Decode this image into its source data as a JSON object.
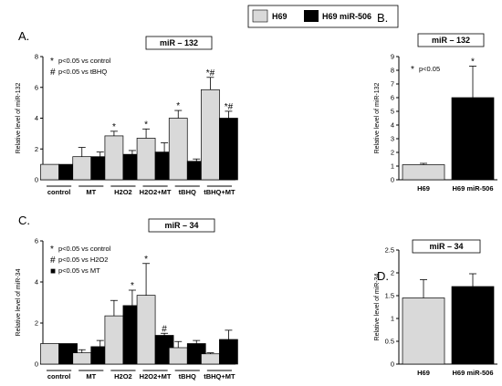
{
  "legend": {
    "items": [
      {
        "label": "H69",
        "color": "#d9d9d9"
      },
      {
        "label": "H69 miR-506",
        "color": "#000000"
      }
    ]
  },
  "chart_data": [
    {
      "panel": "A.",
      "type": "bar",
      "title": "miR – 132",
      "ylabel": "Relative level of miR-132",
      "ylim": [
        0,
        8
      ],
      "yticks": [
        "0",
        "2",
        "4",
        "6",
        "8"
      ],
      "categories": [
        "control",
        "MT",
        "H2O2",
        "H2O2+MT",
        "tBHQ",
        "tBHQ+MT"
      ],
      "series": [
        {
          "name": "H69",
          "values": [
            1.0,
            1.5,
            2.85,
            2.7,
            4.0,
            5.85
          ],
          "errors": [
            0,
            0.6,
            0.3,
            0.6,
            0.5,
            0.8
          ]
        },
        {
          "name": "H69 miR-506",
          "values": [
            1.0,
            1.5,
            1.65,
            1.8,
            1.2,
            4.0
          ],
          "errors": [
            0,
            0.3,
            0.25,
            0.6,
            0.15,
            0.45
          ]
        }
      ],
      "annotations": [
        {
          "text": "*",
          "category": 2,
          "series": 0
        },
        {
          "text": "*",
          "category": 3,
          "series": 0
        },
        {
          "text": "*",
          "category": 4,
          "series": 0
        },
        {
          "text": "*#",
          "category": 5,
          "series": 0
        },
        {
          "text": "*#",
          "category": 5,
          "series": 1
        }
      ],
      "notes": [
        {
          "mark": "*",
          "text": "p<0.05 vs control"
        },
        {
          "mark": "#",
          "text": "p<0.05 vs tBHQ"
        }
      ]
    },
    {
      "panel": "B.",
      "type": "bar",
      "title": "miR – 132",
      "ylabel": "Relative level of miR-132",
      "ylim": [
        0,
        9
      ],
      "yticks": [
        "0",
        "1",
        "2",
        "3",
        "4",
        "5",
        "6",
        "7",
        "8",
        "9"
      ],
      "categories": [
        "H69",
        "H69 miR-506"
      ],
      "series": [
        {
          "name": "H69",
          "values": [
            1.1,
            null
          ],
          "errors": [
            0.1,
            null
          ]
        },
        {
          "name": "H69 miR-506",
          "values": [
            null,
            6.0
          ],
          "errors": [
            null,
            2.3
          ]
        }
      ],
      "annotations": [
        {
          "text": "*",
          "category": 1,
          "series": 1
        }
      ],
      "notes": [
        {
          "mark": "*",
          "text": "p<0.05"
        }
      ]
    },
    {
      "panel": "C.",
      "type": "bar",
      "title": "miR – 34",
      "ylabel": "Relative level of miR-34",
      "ylim": [
        0,
        6
      ],
      "yticks": [
        "0",
        "2",
        "4",
        "6"
      ],
      "categories": [
        "control",
        "MT",
        "H2O2",
        "H2O2+MT",
        "tBHQ",
        "tBHQ+MT"
      ],
      "series": [
        {
          "name": "H69",
          "values": [
            1.0,
            0.55,
            2.35,
            3.35,
            0.8,
            0.5
          ],
          "errors": [
            0,
            0.15,
            0.75,
            1.55,
            0.3,
            0.05
          ]
        },
        {
          "name": "H69 miR-506",
          "values": [
            1.0,
            0.85,
            2.85,
            1.4,
            1.0,
            1.2
          ],
          "errors": [
            0,
            0.3,
            0.75,
            0.1,
            0.15,
            0.45
          ]
        }
      ],
      "annotations": [
        {
          "text": "*",
          "category": 2,
          "series": 1
        },
        {
          "text": "*",
          "category": 3,
          "series": 0
        },
        {
          "text": "#",
          "category": 3,
          "series": 1
        }
      ],
      "notes": [
        {
          "mark": "*",
          "text": "p<0.05 vs control"
        },
        {
          "mark": "#",
          "text": "p<0.05 vs H2O2"
        },
        {
          "mark": "■",
          "text": "p<0.05 vs MT"
        }
      ]
    },
    {
      "panel": "D.",
      "type": "bar",
      "title": "miR – 34",
      "ylabel": "Relative level of miR-34",
      "ylim": [
        0,
        2.5
      ],
      "yticks": [
        "0",
        "0.5",
        "1",
        "1.5",
        "2",
        "2.5"
      ],
      "categories": [
        "H69",
        "H69 miR-506"
      ],
      "series": [
        {
          "name": "H69",
          "values": [
            1.45,
            null
          ],
          "errors": [
            0.4,
            null
          ]
        },
        {
          "name": "H69 miR-506",
          "values": [
            null,
            1.7
          ],
          "errors": [
            null,
            0.28
          ]
        }
      ],
      "annotations": [],
      "notes": []
    }
  ]
}
